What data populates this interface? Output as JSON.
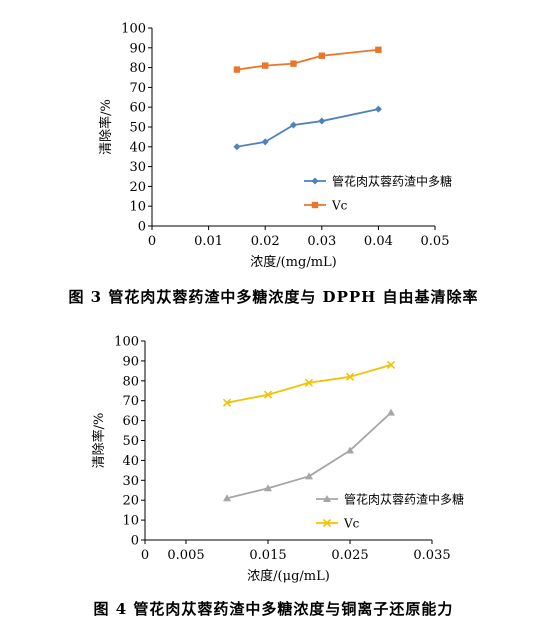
{
  "chart_data": [
    {
      "type": "line",
      "title": "",
      "xlabel": "浓度/(mg/mL)",
      "ylabel": "清除率/%",
      "xlim": [
        0,
        0.05
      ],
      "ylim": [
        0,
        100
      ],
      "xticks": [
        "0",
        "0.01",
        "0.02",
        "0.03",
        "0.04",
        "0.05"
      ],
      "yticks": [
        "0",
        "10",
        "20",
        "30",
        "40",
        "50",
        "60",
        "70",
        "80",
        "90",
        "100"
      ],
      "x": [
        0.015,
        0.02,
        0.025,
        0.03,
        0.04
      ],
      "series": [
        {
          "name": "管花肉苁蓉药渣中多糖",
          "values": [
            40,
            42.5,
            51,
            53,
            59
          ],
          "color": "#4f81bd",
          "marker": "diamond"
        },
        {
          "name": "Vc",
          "values": [
            79,
            81,
            82,
            86,
            89
          ],
          "color": "#e8762b",
          "marker": "square"
        }
      ],
      "legend": "right"
    },
    {
      "type": "line",
      "title": "",
      "xlabel": "浓度/(μg/mL)",
      "ylabel": "清除率/%",
      "xlim": [
        0,
        0.035
      ],
      "ylim": [
        0,
        100
      ],
      "xticks": [
        "0",
        "0.005",
        "0.015",
        "0.025",
        "0.035"
      ],
      "xtick_values": [
        0,
        0.005,
        0.015,
        0.025,
        0.035
      ],
      "yticks": [
        "0",
        "10",
        "20",
        "30",
        "40",
        "50",
        "60",
        "70",
        "80",
        "90",
        "100"
      ],
      "x": [
        0.01,
        0.015,
        0.02,
        0.025,
        0.03
      ],
      "series": [
        {
          "name": "管花肉苁蓉药渣中多糖",
          "values": [
            21,
            26,
            32,
            45,
            64
          ],
          "color": "#a6a6a6",
          "marker": "triangle"
        },
        {
          "name": "Vc",
          "values": [
            69,
            73,
            79,
            82,
            88
          ],
          "color": "#f2c200",
          "marker": "x"
        }
      ],
      "legend": "right"
    }
  ],
  "captions": {
    "fig3": "图 3   管花肉苁蓉药渣中多糖浓度与 DPPH 自由基清除率",
    "fig4": "图 4   管花肉苁蓉药渣中多糖浓度与铜离子还原能力"
  }
}
